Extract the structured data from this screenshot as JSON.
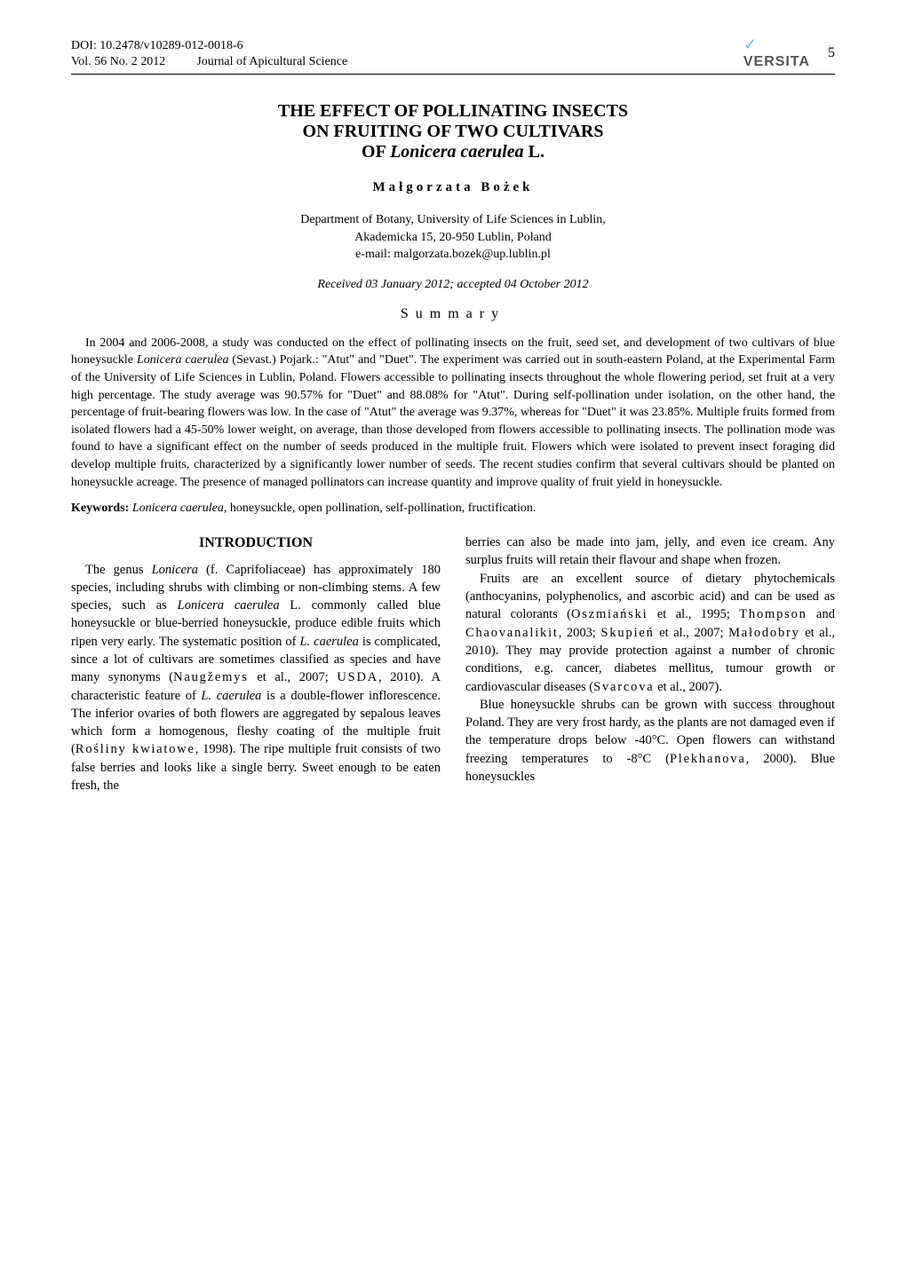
{
  "header": {
    "doi": "DOI: 10.2478/v10289-012-0018-6",
    "vol": "Vol. 56 No. 2 2012",
    "journal": "Journal of Apicultural Science",
    "publisher": "VERSITA",
    "pageNumber": "5"
  },
  "title": {
    "line1": "THE EFFECT OF POLLINATING INSECTS",
    "line2": "ON FRUITING OF TWO CULTIVARS",
    "line3_prefix": "OF ",
    "line3_italic": "Lonicera caerulea",
    "line3_suffix": " L."
  },
  "author": "Małgorzata Bożek",
  "affiliation": {
    "dept": "Department of Botany, University of Life Sciences in Lublin,",
    "address": "Akademicka 15, 20-950 Lublin, Poland",
    "email": "e-mail: malgorzata.bozek@up.lublin.pl"
  },
  "received": "Received 03 January 2012; accepted 04 October 2012",
  "summary_heading": "Summary",
  "abstract": {
    "p1_a": "In 2004 and 2006-2008, a study was conducted on the effect of pollinating insects on the fruit, seed set, and development of two cultivars of blue honeysuckle ",
    "p1_b_italic": "Lonicera caerulea",
    "p1_c": " (Sevast.) Pojark.: \"Atut\" and \"Duet\". The experiment was carried out in south-eastern Poland, at the Experimental Farm of the University of Life Sciences in Lublin, Poland. Flowers accessible to pollinating insects throughout the whole flowering period, set fruit at a very high percentage. The study average was 90.57% for \"Duet\" and 88.08% for \"Atut\". During self-pollination under isolation, on the other hand, the percentage of fruit-bearing flowers was low. In the case of \"Atut\" the average was 9.37%, whereas for \"Duet\" it was 23.85%. Multiple fruits formed from isolated flowers had a 45-50% lower weight, on average, than those developed from flowers accessible to pollinating insects. The pollination mode was found to have a significant effect on the number of seeds produced in the multiple fruit. Flowers which were isolated to prevent insect foraging did develop multiple fruits, characterized by a significantly lower number of seeds. The recent studies confirm that several cultivars should be planted on honeysuckle acreage. The presence of managed pollinators can increase quantity and improve quality of fruit yield in honeysuckle."
  },
  "keywords": {
    "label": "Keywords: ",
    "italic": "Lonicera caerulea,",
    "rest": " honeysuckle, open pollination, self-pollination, fructification."
  },
  "intro_heading": "INTRODUCTION",
  "left_col": {
    "p1_a": "The genus ",
    "p1_b_italic": "Lonicera",
    "p1_c": " (f. Caprifoliaceae) has approximately 180 species, including shrubs with climbing or non-climbing stems. A few species, such as ",
    "p1_d_italic": "Lonicera caerulea",
    "p1_e": " L. commonly called blue honeysuckle or blue-berried honeysuckle, produce edible fruits which ripen very early. The systematic position of ",
    "p1_f_italic": "L. caerulea",
    "p1_g": " is complicated, since a lot of cultivars are sometimes classified as species and have many synonyms (",
    "p1_h_spaced": "Naugžemys",
    "p1_i": " et al., 2007; ",
    "p1_j_spaced": "USDA",
    "p1_k": ", 2010). A characteristic feature of ",
    "p1_l_italic": "L. caerulea",
    "p1_m": " is a double-flower inflorescence. The inferior ovaries of both flowers are aggregated by sepalous leaves which form a homogenous, fleshy coating of the multiple fruit (",
    "p1_n_spaced": "Rośliny kwiatowe",
    "p1_o": ", 1998). The ripe multiple fruit consists of two false berries and looks like a single berry. Sweet enough to be eaten fresh, the"
  },
  "right_col": {
    "p1": "berries can also be made into jam, jelly, and even ice cream. Any surplus fruits will retain their flavour and shape when frozen.",
    "p2_a": "Fruits are an excellent source of dietary phytochemicals (anthocyanins, polyphenolics, and ascorbic acid) and can be used as natural colorants (",
    "p2_b_spaced": "Oszmiański",
    "p2_c": " et al., 1995; ",
    "p2_d_spaced": "Thompson",
    "p2_e": " and ",
    "p2_f_spaced": "Chaovanalikit",
    "p2_g": ", 2003; ",
    "p2_h_spaced": "Skupień",
    "p2_i": " et al., 2007; ",
    "p2_j_spaced": "Małodobry",
    "p2_k": " et al., 2010). They may provide protection against a number of chronic conditions, e.g. cancer, diabetes mellitus, tumour growth or cardiovascular diseases (",
    "p2_l_spaced": "Svarcova",
    "p2_m": " et al., 2007).",
    "p3_a": "Blue honeysuckle shrubs can be grown with success throughout Poland. They are very frost hardy, as the plants are not damaged even if the temperature drops below -40°C. Open flowers can withstand freezing temperatures to -8°C (",
    "p3_b_spaced": "Plekhanova",
    "p3_c": ", 2000). Blue honeysuckles"
  }
}
